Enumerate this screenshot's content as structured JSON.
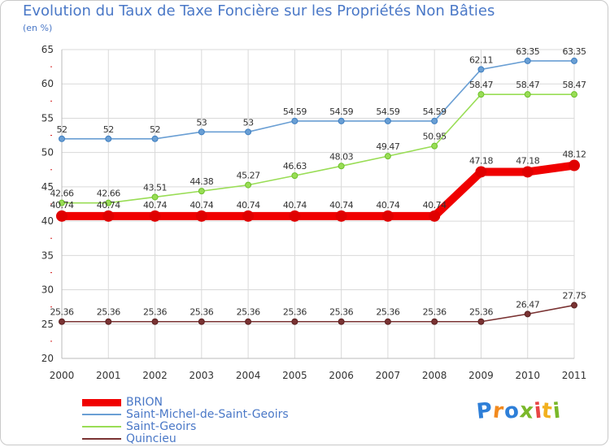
{
  "header": {
    "title": "Evolution du Taux de Taxe Foncière sur les Propriétés Non Bâties",
    "unit": "(en %)"
  },
  "colors": {
    "title": "#4a78c7",
    "grid": "#d9d9d9",
    "axis_text": "#333333",
    "tick_mark": "#d42020"
  },
  "legend": [
    {
      "name": "BRION",
      "color": "#f00000"
    },
    {
      "name": "Saint-Michel-de-Saint-Geoirs",
      "color": "#6a9fd4"
    },
    {
      "name": "Saint-Geoirs",
      "color": "#99dd55"
    },
    {
      "name": "Quincieu",
      "color": "#7a3333"
    }
  ],
  "logo": {
    "letters": [
      "P",
      "r",
      "o",
      "x",
      "i",
      "t",
      "i"
    ],
    "colors": [
      "#2e7fd8",
      "#f28a1e",
      "#2e7fd8",
      "#7ab82a",
      "#e84545",
      "#f2b01e",
      "#7ab82a"
    ]
  },
  "chart_data": {
    "type": "line",
    "title": "Evolution du Taux de Taxe Foncière sur les Propriétés Non Bâties",
    "ylabel": "(en %)",
    "xlabel": "",
    "categories": [
      "2000",
      "2001",
      "2002",
      "2003",
      "2004",
      "2005",
      "2006",
      "2007",
      "2008",
      "2009",
      "2010",
      "2011"
    ],
    "ylim": [
      20,
      65
    ],
    "yticks": [
      20,
      25,
      30,
      35,
      40,
      45,
      50,
      55,
      60,
      65
    ],
    "grid": true,
    "legend_position": "bottom-left",
    "series": [
      {
        "name": "Saint-Michel-de-Saint-Geoirs",
        "color": "#6a9fd4",
        "point_color": "#3f7fc1",
        "values": [
          52,
          52,
          52,
          53,
          53,
          54.59,
          54.59,
          54.59,
          54.59,
          62.11,
          63.35,
          63.35
        ],
        "labels": [
          "52",
          "52",
          "52",
          "53",
          "53",
          "54.59",
          "54.59",
          "54.59",
          "54.59",
          "62.11",
          "63.35",
          "63.35"
        ]
      },
      {
        "name": "Saint-Geoirs",
        "color": "#99dd55",
        "point_color": "#6cc02a",
        "values": [
          42.66,
          42.66,
          43.51,
          44.38,
          45.27,
          46.63,
          48.03,
          49.47,
          50.95,
          58.47,
          58.47,
          58.47
        ],
        "labels": [
          "42.66",
          "42.66",
          "43.51",
          "44.38",
          "45.27",
          "46.63",
          "48.03",
          "49.47",
          "50.95",
          "58.47",
          "58.47",
          "58.47"
        ]
      },
      {
        "name": "BRION",
        "color": "#f00000",
        "point_color": "#e00000",
        "values": [
          40.74,
          40.74,
          40.74,
          40.74,
          40.74,
          40.74,
          40.74,
          40.74,
          40.74,
          47.18,
          47.18,
          48.12
        ],
        "labels": [
          "40.74",
          "40.74",
          "40.74",
          "40.74",
          "40.74",
          "40.74",
          "40.74",
          "40.74",
          "40.74",
          "47.18",
          "47.18",
          "48.12"
        ]
      },
      {
        "name": "Quincieu",
        "color": "#7a3333",
        "point_color": "#5a2020",
        "values": [
          25.36,
          25.36,
          25.36,
          25.36,
          25.36,
          25.36,
          25.36,
          25.36,
          25.36,
          25.36,
          26.47,
          27.75
        ],
        "labels": [
          "25.36",
          "25.36",
          "25.36",
          "25.36",
          "25.36",
          "25.36",
          "25.36",
          "25.36",
          "25.36",
          "25.36",
          "26.47",
          "27.75"
        ]
      }
    ]
  }
}
